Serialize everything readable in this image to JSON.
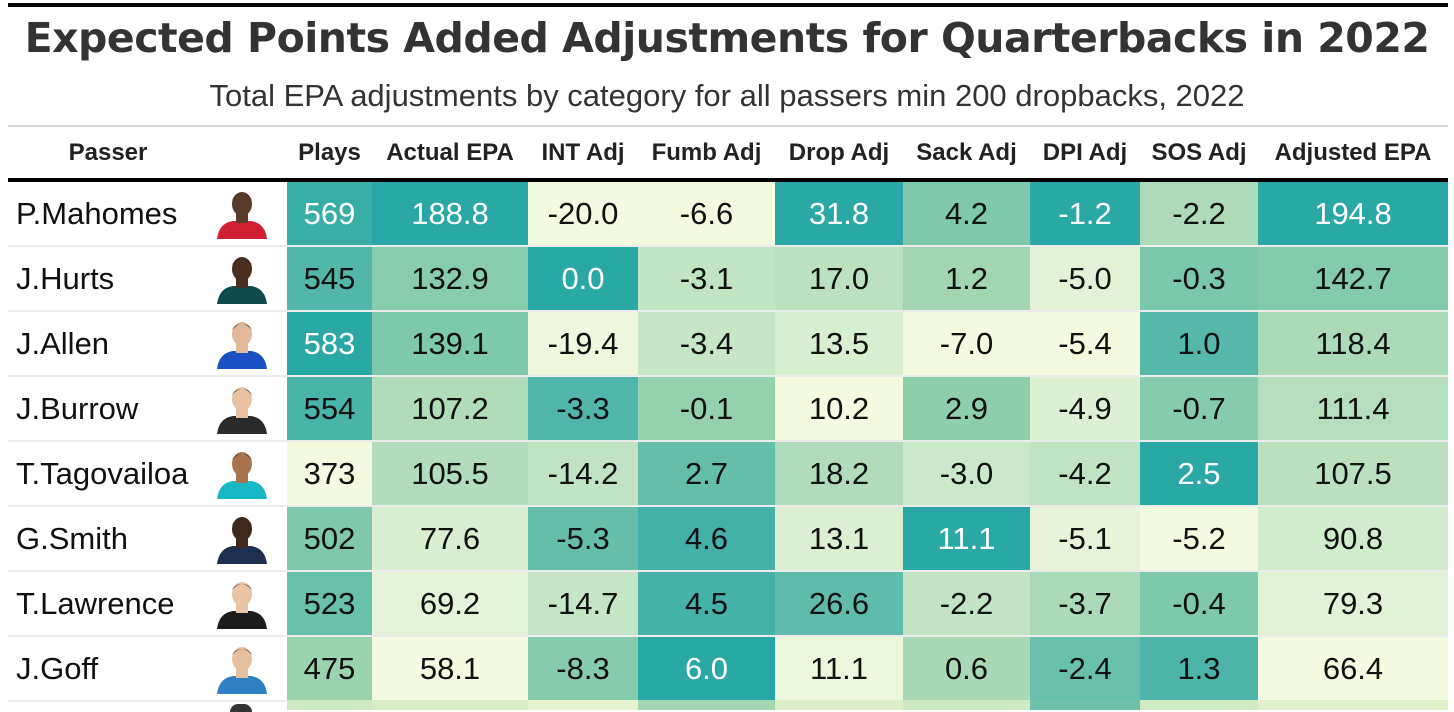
{
  "title": "Expected Points Added Adjustments for Quarterbacks in 2022",
  "subtitle": "Total EPA adjustments by category for all passers min 200 dropbacks, 2022",
  "chart_data": {
    "type": "table",
    "columns": [
      "Passer",
      "Plays",
      "Actual EPA",
      "INT Adj",
      "Fumb Adj",
      "Drop Adj",
      "Sack Adj",
      "DPI Adj",
      "SOS Adj",
      "Adjusted EPA"
    ],
    "rows": [
      {
        "passer": "P.Mahomes",
        "plays": "569",
        "actual_epa": "188.8",
        "int_adj": "-20.0",
        "fumb_adj": "-6.6",
        "drop_adj": "31.8",
        "sack_adj": "4.2",
        "dpi_adj": "-1.2",
        "sos_adj": "-2.2",
        "adjusted_epa": "194.8"
      },
      {
        "passer": "J.Hurts",
        "plays": "545",
        "actual_epa": "132.9",
        "int_adj": "0.0",
        "fumb_adj": "-3.1",
        "drop_adj": "17.0",
        "sack_adj": "1.2",
        "dpi_adj": "-5.0",
        "sos_adj": "-0.3",
        "adjusted_epa": "142.7"
      },
      {
        "passer": "J.Allen",
        "plays": "583",
        "actual_epa": "139.1",
        "int_adj": "-19.4",
        "fumb_adj": "-3.4",
        "drop_adj": "13.5",
        "sack_adj": "-7.0",
        "dpi_adj": "-5.4",
        "sos_adj": "1.0",
        "adjusted_epa": "118.4"
      },
      {
        "passer": "J.Burrow",
        "plays": "554",
        "actual_epa": "107.2",
        "int_adj": "-3.3",
        "fumb_adj": "-0.1",
        "drop_adj": "10.2",
        "sack_adj": "2.9",
        "dpi_adj": "-4.9",
        "sos_adj": "-0.7",
        "adjusted_epa": "111.4"
      },
      {
        "passer": "T.Tagovailoa",
        "plays": "373",
        "actual_epa": "105.5",
        "int_adj": "-14.2",
        "fumb_adj": "2.7",
        "drop_adj": "18.2",
        "sack_adj": "-3.0",
        "dpi_adj": "-4.2",
        "sos_adj": "2.5",
        "adjusted_epa": "107.5"
      },
      {
        "passer": "G.Smith",
        "plays": "502",
        "actual_epa": "77.6",
        "int_adj": "-5.3",
        "fumb_adj": "4.6",
        "drop_adj": "13.1",
        "sack_adj": "11.1",
        "dpi_adj": "-5.1",
        "sos_adj": "-5.2",
        "adjusted_epa": "90.8"
      },
      {
        "passer": "T.Lawrence",
        "plays": "523",
        "actual_epa": "69.2",
        "int_adj": "-14.7",
        "fumb_adj": "4.5",
        "drop_adj": "26.6",
        "sack_adj": "-2.2",
        "dpi_adj": "-3.7",
        "sos_adj": "-0.4",
        "adjusted_epa": "79.3"
      },
      {
        "passer": "J.Goff",
        "plays": "475",
        "actual_epa": "58.1",
        "int_adj": "-8.3",
        "fumb_adj": "6.0",
        "drop_adj": "11.1",
        "sack_adj": "0.6",
        "dpi_adj": "-2.4",
        "sos_adj": "1.3",
        "adjusted_epa": "66.4"
      }
    ],
    "color_scale": {
      "low": "#f4fae0",
      "mid": "#99d2ae",
      "high": "#2aa8a6"
    },
    "team_colors": {
      "P.Mahomes": {
        "jersey": "#d11f32",
        "skin": "#5a3a28"
      },
      "J.Hurts": {
        "jersey": "#0f4a4a",
        "skin": "#4a2f20"
      },
      "J.Allen": {
        "jersey": "#1b4fc4",
        "skin": "#e2b89a"
      },
      "J.Burrow": {
        "jersey": "#2a2a2a",
        "skin": "#e7c1a2"
      },
      "T.Tagovailoa": {
        "jersey": "#19b6c4",
        "skin": "#a8744f"
      },
      "G.Smith": {
        "jersey": "#1d2f4f",
        "skin": "#3e281b"
      },
      "T.Lawrence": {
        "jersey": "#1c1c1c",
        "skin": "#e8c3a4"
      },
      "J.Goff": {
        "jersey": "#2f7fc4",
        "skin": "#e6bf9f"
      }
    }
  }
}
